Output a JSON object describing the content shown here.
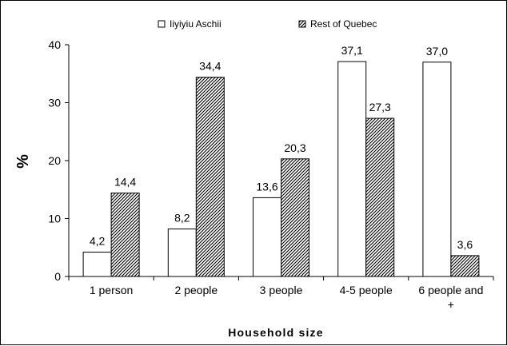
{
  "chart_data": {
    "type": "bar",
    "title": "",
    "xlabel": "Household size",
    "ylabel": "%",
    "ylim": [
      0,
      40
    ],
    "yticks": [
      0,
      10,
      20,
      30,
      40
    ],
    "grid": false,
    "legend_position": "top",
    "categories": [
      [
        "1 person"
      ],
      [
        "2 people"
      ],
      [
        "3 people"
      ],
      [
        "4-5 people"
      ],
      [
        "6 people and",
        "+"
      ]
    ],
    "series": [
      {
        "name": "Iiyiyiu Aschii",
        "fill": "#ffffff",
        "pattern": "none",
        "values": [
          4.2,
          8.2,
          13.6,
          37.1,
          37.0
        ],
        "labels": [
          "4,2",
          "8,2",
          "13,6",
          "37,1",
          "37,0"
        ]
      },
      {
        "name": "Rest of Quebec",
        "fill": "#ffffff",
        "pattern": "diagonal-hatch",
        "values": [
          14.4,
          34.4,
          20.3,
          27.3,
          3.6
        ],
        "labels": [
          "14,4",
          "34,4",
          "20,3",
          "27,3",
          "3,6"
        ]
      }
    ]
  }
}
